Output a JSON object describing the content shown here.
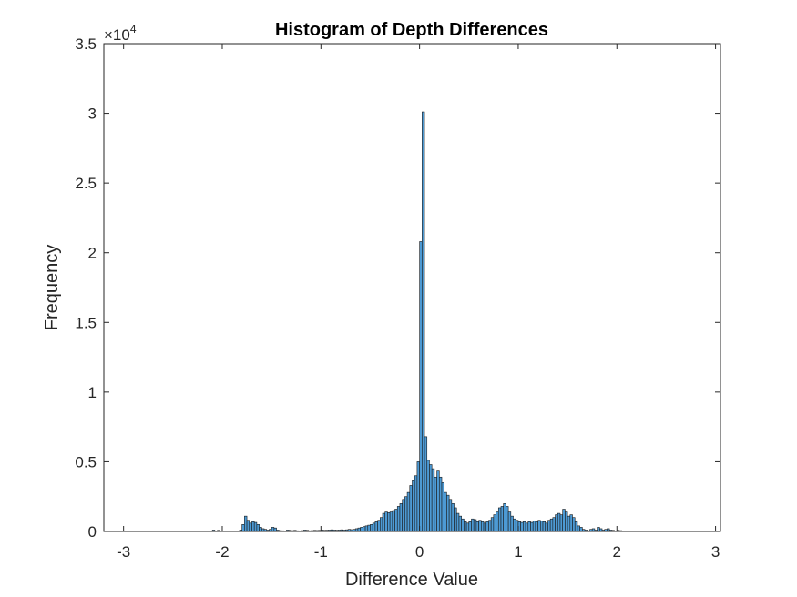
{
  "chart_data": {
    "type": "bar",
    "title": "Histogram of Depth Differences",
    "xlabel": "Difference Value",
    "ylabel": "Frequency",
    "xlim": [
      -3.2,
      3.05
    ],
    "ylim": [
      0,
      35000
    ],
    "xticks": [
      -3,
      -2,
      -1,
      0,
      1,
      2,
      3
    ],
    "xtick_labels": [
      "-3",
      "-2",
      "-1",
      "0",
      "1",
      "2",
      "3"
    ],
    "yticks": [
      0,
      5000,
      10000,
      15000,
      20000,
      25000,
      30000,
      35000
    ],
    "ytick_labels": [
      "0",
      "0.5",
      "1",
      "1.5",
      "2",
      "2.5",
      "3",
      "3.5"
    ],
    "y_exponent": {
      "base": "×10",
      "power": "4"
    },
    "grid": false,
    "bar_color": "#4d9ad4",
    "edge_color": "#1a1a1a",
    "bin_width": 0.025,
    "bins": [
      {
        "x": -2.9,
        "value": 40
      },
      {
        "x": -2.8,
        "value": 30
      },
      {
        "x": -2.7,
        "value": 30
      },
      {
        "x": -2.1,
        "value": 100
      },
      {
        "x": -2.05,
        "value": 80
      },
      {
        "x": -1.825,
        "value": 100
      },
      {
        "x": -1.8,
        "value": 500
      },
      {
        "x": -1.775,
        "value": 1100
      },
      {
        "x": -1.75,
        "value": 800
      },
      {
        "x": -1.725,
        "value": 600
      },
      {
        "x": -1.7,
        "value": 700
      },
      {
        "x": -1.675,
        "value": 650
      },
      {
        "x": -1.65,
        "value": 500
      },
      {
        "x": -1.625,
        "value": 300
      },
      {
        "x": -1.6,
        "value": 200
      },
      {
        "x": -1.575,
        "value": 150
      },
      {
        "x": -1.55,
        "value": 100
      },
      {
        "x": -1.525,
        "value": 150
      },
      {
        "x": -1.5,
        "value": 300
      },
      {
        "x": -1.475,
        "value": 250
      },
      {
        "x": -1.45,
        "value": 100
      },
      {
        "x": -1.425,
        "value": 60
      },
      {
        "x": -1.4,
        "value": 50
      },
      {
        "x": -1.35,
        "value": 100
      },
      {
        "x": -1.325,
        "value": 80
      },
      {
        "x": -1.3,
        "value": 60
      },
      {
        "x": -1.275,
        "value": 80
      },
      {
        "x": -1.25,
        "value": 50
      },
      {
        "x": -1.2,
        "value": 60
      },
      {
        "x": -1.175,
        "value": 100
      },
      {
        "x": -1.15,
        "value": 80
      },
      {
        "x": -1.125,
        "value": 50
      },
      {
        "x": -1.1,
        "value": 60
      },
      {
        "x": -1.075,
        "value": 80
      },
      {
        "x": -1.05,
        "value": 70
      },
      {
        "x": -1.025,
        "value": 80
      },
      {
        "x": -1.0,
        "value": 100
      },
      {
        "x": -0.975,
        "value": 80
      },
      {
        "x": -0.95,
        "value": 90
      },
      {
        "x": -0.925,
        "value": 100
      },
      {
        "x": -0.9,
        "value": 120
      },
      {
        "x": -0.875,
        "value": 100
      },
      {
        "x": -0.85,
        "value": 90
      },
      {
        "x": -0.825,
        "value": 100
      },
      {
        "x": -0.8,
        "value": 120
      },
      {
        "x": -0.775,
        "value": 100
      },
      {
        "x": -0.75,
        "value": 120
      },
      {
        "x": -0.725,
        "value": 150
      },
      {
        "x": -0.7,
        "value": 130
      },
      {
        "x": -0.675,
        "value": 150
      },
      {
        "x": -0.65,
        "value": 200
      },
      {
        "x": -0.625,
        "value": 250
      },
      {
        "x": -0.6,
        "value": 300
      },
      {
        "x": -0.575,
        "value": 350
      },
      {
        "x": -0.55,
        "value": 400
      },
      {
        "x": -0.525,
        "value": 450
      },
      {
        "x": -0.5,
        "value": 500
      },
      {
        "x": -0.475,
        "value": 600
      },
      {
        "x": -0.45,
        "value": 700
      },
      {
        "x": -0.425,
        "value": 800
      },
      {
        "x": -0.4,
        "value": 1000
      },
      {
        "x": -0.375,
        "value": 1300
      },
      {
        "x": -0.35,
        "value": 1400
      },
      {
        "x": -0.325,
        "value": 1350
      },
      {
        "x": -0.3,
        "value": 1400
      },
      {
        "x": -0.275,
        "value": 1500
      },
      {
        "x": -0.25,
        "value": 1600
      },
      {
        "x": -0.225,
        "value": 1800
      },
      {
        "x": -0.2,
        "value": 2000
      },
      {
        "x": -0.175,
        "value": 2300
      },
      {
        "x": -0.15,
        "value": 2500
      },
      {
        "x": -0.125,
        "value": 2800
      },
      {
        "x": -0.1,
        "value": 3300
      },
      {
        "x": -0.075,
        "value": 3700
      },
      {
        "x": -0.05,
        "value": 4000
      },
      {
        "x": -0.025,
        "value": 5000
      },
      {
        "x": 0.0,
        "value": 20800
      },
      {
        "x": 0.025,
        "value": 30100
      },
      {
        "x": 0.05,
        "value": 6800
      },
      {
        "x": 0.075,
        "value": 5100
      },
      {
        "x": 0.1,
        "value": 4800
      },
      {
        "x": 0.125,
        "value": 4500
      },
      {
        "x": 0.15,
        "value": 3900
      },
      {
        "x": 0.175,
        "value": 4400
      },
      {
        "x": 0.2,
        "value": 3900
      },
      {
        "x": 0.225,
        "value": 3500
      },
      {
        "x": 0.25,
        "value": 2800
      },
      {
        "x": 0.275,
        "value": 2600
      },
      {
        "x": 0.3,
        "value": 2300
      },
      {
        "x": 0.325,
        "value": 2000
      },
      {
        "x": 0.35,
        "value": 1700
      },
      {
        "x": 0.375,
        "value": 1300
      },
      {
        "x": 0.4,
        "value": 1100
      },
      {
        "x": 0.425,
        "value": 900
      },
      {
        "x": 0.45,
        "value": 700
      },
      {
        "x": 0.475,
        "value": 600
      },
      {
        "x": 0.5,
        "value": 700
      },
      {
        "x": 0.525,
        "value": 900
      },
      {
        "x": 0.55,
        "value": 850
      },
      {
        "x": 0.575,
        "value": 700
      },
      {
        "x": 0.6,
        "value": 800
      },
      {
        "x": 0.625,
        "value": 700
      },
      {
        "x": 0.65,
        "value": 600
      },
      {
        "x": 0.675,
        "value": 700
      },
      {
        "x": 0.7,
        "value": 800
      },
      {
        "x": 0.725,
        "value": 1000
      },
      {
        "x": 0.75,
        "value": 1200
      },
      {
        "x": 0.775,
        "value": 1400
      },
      {
        "x": 0.8,
        "value": 1700
      },
      {
        "x": 0.825,
        "value": 1800
      },
      {
        "x": 0.85,
        "value": 2000
      },
      {
        "x": 0.875,
        "value": 1800
      },
      {
        "x": 0.9,
        "value": 1400
      },
      {
        "x": 0.925,
        "value": 1100
      },
      {
        "x": 0.95,
        "value": 900
      },
      {
        "x": 0.975,
        "value": 800
      },
      {
        "x": 1.0,
        "value": 700
      },
      {
        "x": 1.025,
        "value": 650
      },
      {
        "x": 1.05,
        "value": 700
      },
      {
        "x": 1.075,
        "value": 600
      },
      {
        "x": 1.1,
        "value": 700
      },
      {
        "x": 1.125,
        "value": 650
      },
      {
        "x": 1.15,
        "value": 750
      },
      {
        "x": 1.175,
        "value": 700
      },
      {
        "x": 1.2,
        "value": 800
      },
      {
        "x": 1.225,
        "value": 750
      },
      {
        "x": 1.25,
        "value": 700
      },
      {
        "x": 1.275,
        "value": 600
      },
      {
        "x": 1.3,
        "value": 800
      },
      {
        "x": 1.325,
        "value": 900
      },
      {
        "x": 1.35,
        "value": 1000
      },
      {
        "x": 1.375,
        "value": 1200
      },
      {
        "x": 1.4,
        "value": 1300
      },
      {
        "x": 1.425,
        "value": 1200
      },
      {
        "x": 1.45,
        "value": 1600
      },
      {
        "x": 1.475,
        "value": 1400
      },
      {
        "x": 1.5,
        "value": 1100
      },
      {
        "x": 1.525,
        "value": 1200
      },
      {
        "x": 1.55,
        "value": 1000
      },
      {
        "x": 1.575,
        "value": 700
      },
      {
        "x": 1.6,
        "value": 400
      },
      {
        "x": 1.625,
        "value": 300
      },
      {
        "x": 1.65,
        "value": 150
      },
      {
        "x": 1.675,
        "value": 100
      },
      {
        "x": 1.7,
        "value": 50
      },
      {
        "x": 1.725,
        "value": 150
      },
      {
        "x": 1.75,
        "value": 200
      },
      {
        "x": 1.775,
        "value": 100
      },
      {
        "x": 1.8,
        "value": 300
      },
      {
        "x": 1.825,
        "value": 200
      },
      {
        "x": 1.85,
        "value": 100
      },
      {
        "x": 1.875,
        "value": 150
      },
      {
        "x": 1.9,
        "value": 200
      },
      {
        "x": 1.925,
        "value": 100
      },
      {
        "x": 1.95,
        "value": 80
      },
      {
        "x": 2.0,
        "value": 80
      },
      {
        "x": 2.025,
        "value": 60
      },
      {
        "x": 2.15,
        "value": 40
      },
      {
        "x": 2.25,
        "value": 40
      },
      {
        "x": 2.55,
        "value": 30
      },
      {
        "x": 2.65,
        "value": 40
      }
    ]
  }
}
